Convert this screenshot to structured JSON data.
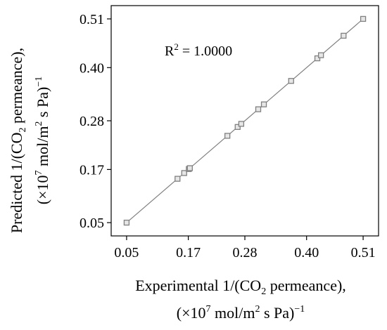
{
  "chart_data": {
    "type": "scatter",
    "x": [
      0.05,
      0.149,
      0.162,
      0.171,
      0.173,
      0.246,
      0.266,
      0.273,
      0.306,
      0.317,
      0.37,
      0.421,
      0.428,
      0.472,
      0.51
    ],
    "y": [
      0.05,
      0.149,
      0.162,
      0.171,
      0.173,
      0.246,
      0.266,
      0.273,
      0.306,
      0.317,
      0.37,
      0.421,
      0.428,
      0.472,
      0.51
    ],
    "fit_line": {
      "x": [
        0.05,
        0.51
      ],
      "y": [
        0.05,
        0.51
      ]
    },
    "x_ticks": [
      "0.05",
      "0.17",
      "0.28",
      "0.40",
      "0.51"
    ],
    "y_ticks": [
      "0.05",
      "0.17",
      "0.28",
      "0.40",
      "0.51"
    ],
    "xlim": [
      0.02,
      0.54
    ],
    "ylim": [
      0.02,
      0.54
    ],
    "xlabel_line1": "Experimental 1/(CO",
    "xlabel_sub": "2",
    "xlabel_line1_end": " permeance),",
    "xlabel_line2_start": "(×10",
    "xlabel_line2_sup": "7",
    "xlabel_line2_mid": " mol/m",
    "xlabel_line2_sup2": "2",
    "xlabel_line2_end": " s Pa)",
    "xlabel_line2_sup3": "−1",
    "ylabel_line1": "Predicted 1/(CO",
    "ylabel_sub": "2",
    "ylabel_line1_end": " permeance),",
    "ylabel_line2_start": "(×10",
    "ylabel_line2_sup": "7",
    "ylabel_line2_mid": " mol/m",
    "ylabel_line2_sup2": "2",
    "ylabel_line2_end": " s Pa)",
    "ylabel_line2_sup3": "−1",
    "annotation_prefix": "R",
    "annotation_sup": "2",
    "annotation_value": " = 1.0000",
    "grid": false,
    "marker_color": "#808080",
    "line_color": "#808080"
  }
}
